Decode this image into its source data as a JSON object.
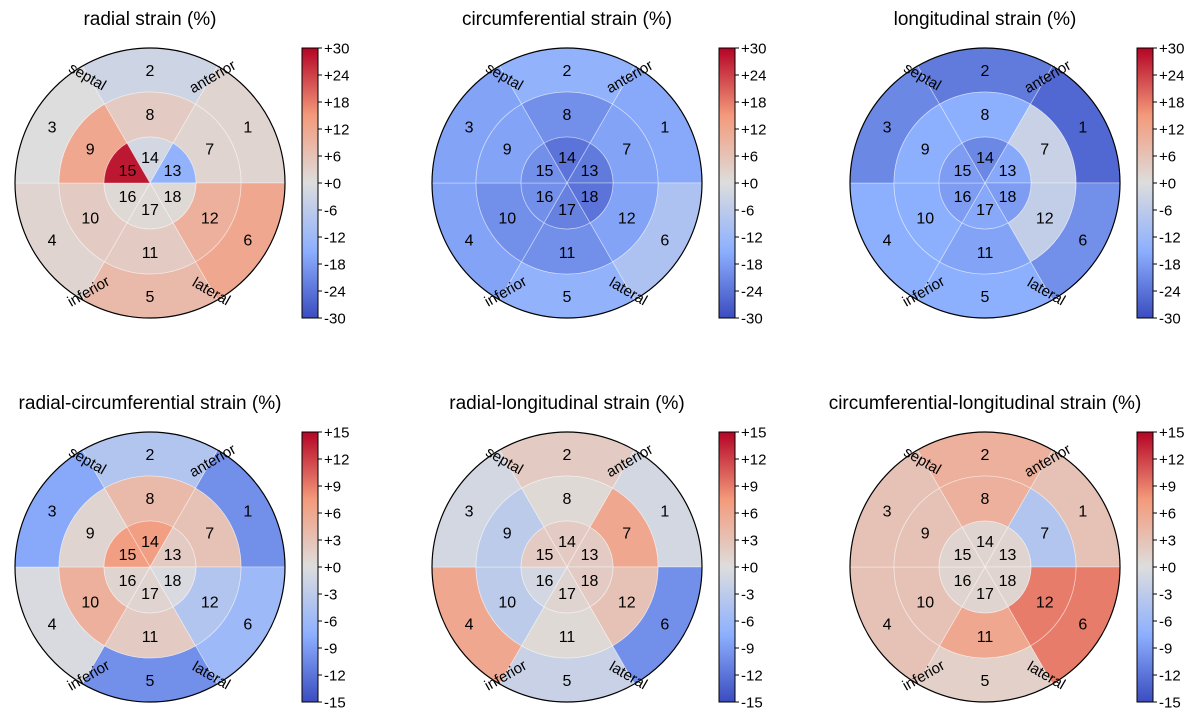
{
  "chart_data": [
    {
      "type": "bullseye",
      "title": "radial strain (%)",
      "colorbar": {
        "min": -30,
        "max": 30,
        "ticks": [
          "+30",
          "+24",
          "+18",
          "+12",
          "+6",
          "+0",
          "-6",
          "-12",
          "-18",
          "-24",
          "-30"
        ]
      },
      "wall_labels": {
        "septal": "septal",
        "anterior": "anterior",
        "inferior": "inferior",
        "lateral": "lateral"
      },
      "segments": {
        "1": 2,
        "2": -3,
        "3": 0,
        "4": 2,
        "5": 8,
        "6": 12,
        "7": 2,
        "8": 4,
        "9": 12,
        "10": 4,
        "11": 4,
        "12": 10,
        "13": -14,
        "14": -2,
        "15": 28,
        "16": 1,
        "17": 1,
        "18": 1
      }
    },
    {
      "type": "bullseye",
      "title": "circumferential strain (%)",
      "colorbar": {
        "min": -30,
        "max": 30,
        "ticks": [
          "+30",
          "+24",
          "+18",
          "+12",
          "+6",
          "+0",
          "-6",
          "-12",
          "-18",
          "-24",
          "-30"
        ]
      },
      "wall_labels": {
        "septal": "septal",
        "anterior": "anterior",
        "inferior": "inferior",
        "lateral": "lateral"
      },
      "segments": {
        "1": -16,
        "2": -14,
        "3": -17,
        "4": -17,
        "5": -14,
        "6": -9,
        "7": -17,
        "8": -20,
        "9": -17,
        "10": -20,
        "11": -20,
        "12": -17,
        "13": -23,
        "14": -24,
        "15": -20,
        "16": -20,
        "17": -22,
        "18": -24
      }
    },
    {
      "type": "bullseye",
      "title": "longitudinal strain (%)",
      "colorbar": {
        "min": -30,
        "max": 30,
        "ticks": [
          "+30",
          "+24",
          "+18",
          "+12",
          "+6",
          "+0",
          "-6",
          "-12",
          "-18",
          "-24",
          "-30"
        ]
      },
      "wall_labels": {
        "septal": "septal",
        "anterior": "anterior",
        "inferior": "inferior",
        "lateral": "lateral"
      },
      "segments": {
        "1": -26,
        "2": -23,
        "3": -21,
        "4": -15,
        "5": -15,
        "6": -20,
        "7": -4,
        "8": -15,
        "9": -15,
        "10": -15,
        "11": -17,
        "12": -5,
        "13": -16,
        "14": -21,
        "15": -18,
        "16": -18,
        "17": -16,
        "18": -18
      }
    },
    {
      "type": "bullseye",
      "title": "radial-circumferential strain (%)",
      "colorbar": {
        "min": -15,
        "max": 15,
        "ticks": [
          "+15",
          "+12",
          "+9",
          "+6",
          "+3",
          "+0",
          "-3",
          "-6",
          "-9",
          "-12",
          "-15"
        ]
      },
      "wall_labels": {
        "septal": "septal",
        "anterior": "anterior",
        "inferior": "inferior",
        "lateral": "lateral"
      },
      "segments": {
        "1": -10,
        "2": -4,
        "3": -8,
        "4": -0.5,
        "5": -10,
        "6": -6,
        "7": 3,
        "8": 4,
        "9": 1,
        "10": 5,
        "11": 2,
        "12": -4,
        "13": 2,
        "14": 7,
        "15": 7,
        "16": 1,
        "17": 1,
        "18": -0.5
      }
    },
    {
      "type": "bullseye",
      "title": "radial-longitudinal strain (%)",
      "colorbar": {
        "min": -15,
        "max": 15,
        "ticks": [
          "+15",
          "+12",
          "+9",
          "+6",
          "+3",
          "+0",
          "-3",
          "-6",
          "-9",
          "-12",
          "-15"
        ]
      },
      "wall_labels": {
        "septal": "septal",
        "anterior": "anterior",
        "inferior": "inferior",
        "lateral": "lateral"
      },
      "segments": {
        "1": -1,
        "2": 2,
        "3": -1,
        "4": 6,
        "5": -2,
        "6": -10,
        "7": 6,
        "8": 0.5,
        "9": -3,
        "10": -3,
        "11": 0.5,
        "12": 3,
        "13": 2,
        "14": 2,
        "15": 2,
        "16": -1,
        "17": 1,
        "18": 2
      }
    },
    {
      "type": "bullseye",
      "title": "circumferential-longitudinal strain (%)",
      "colorbar": {
        "min": -15,
        "max": 15,
        "ticks": [
          "+15",
          "+12",
          "+9",
          "+6",
          "+3",
          "+0",
          "-3",
          "-6",
          "-9",
          "-12",
          "-15"
        ]
      },
      "wall_labels": {
        "septal": "septal",
        "anterior": "anterior",
        "inferior": "inferior",
        "lateral": "lateral"
      },
      "segments": {
        "1": 3,
        "2": 5,
        "3": 3,
        "4": 3,
        "5": 1.5,
        "6": 9,
        "7": -4,
        "8": 5,
        "9": 3,
        "10": 3,
        "11": 6,
        "12": 9,
        "13": 1,
        "14": 1,
        "15": 1,
        "16": 1,
        "17": 1,
        "18": 1
      }
    }
  ]
}
